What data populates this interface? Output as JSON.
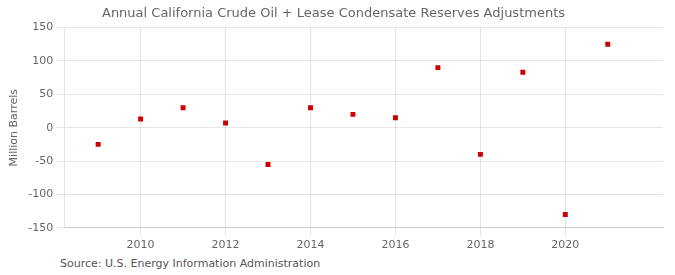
{
  "chart_data": {
    "type": "scatter",
    "title": "Annual California Crude Oil + Lease Condensate Reserves Adjustments",
    "ylabel": "Million Barrels",
    "annotations": [
      "Source: U.S. Energy Information Administration"
    ],
    "x": [
      2009,
      2010,
      2011,
      2012,
      2013,
      2014,
      2015,
      2016,
      2017,
      2018,
      2019,
      2020,
      2021
    ],
    "values": [
      -25,
      13,
      30,
      7,
      -55,
      30,
      20,
      15,
      90,
      -40,
      83,
      -130,
      125
    ],
    "color": "#cc0000",
    "marker": "square",
    "xlim": [
      2008.2,
      2022.3
    ],
    "xticks": [
      2010,
      2012,
      2014,
      2016,
      2018,
      2020
    ],
    "ylim": [
      -150,
      150
    ],
    "yticks": [
      -150,
      -100,
      -50,
      0,
      50,
      100,
      150
    ],
    "grid": true
  }
}
